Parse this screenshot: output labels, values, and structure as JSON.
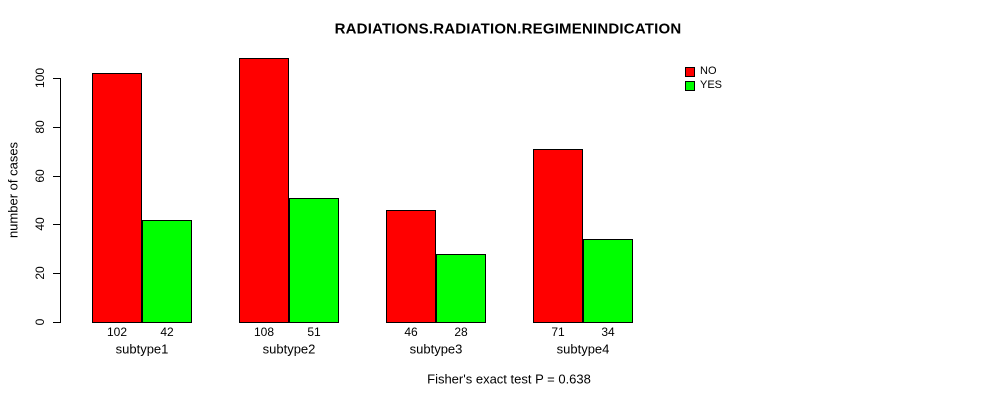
{
  "chart_data": {
    "type": "bar",
    "title": "RADIATIONS.RADIATION.REGIMENINDICATION",
    "ylabel": "number of cases",
    "xlabel": "",
    "categories": [
      "subtype1",
      "subtype2",
      "subtype3",
      "subtype4"
    ],
    "series": [
      {
        "name": "NO",
        "color": "#ff0000",
        "values": [
          102,
          108,
          46,
          71
        ]
      },
      {
        "name": "YES",
        "color": "#00ff00",
        "values": [
          42,
          51,
          28,
          34
        ]
      }
    ],
    "yticks": [
      0,
      20,
      40,
      60,
      80,
      100
    ],
    "ylim": [
      0,
      108
    ],
    "grid": false,
    "legend_position": "top-right",
    "bar_value_labels_shown": true,
    "annotation": "Fisher's exact test P = 0.638"
  }
}
